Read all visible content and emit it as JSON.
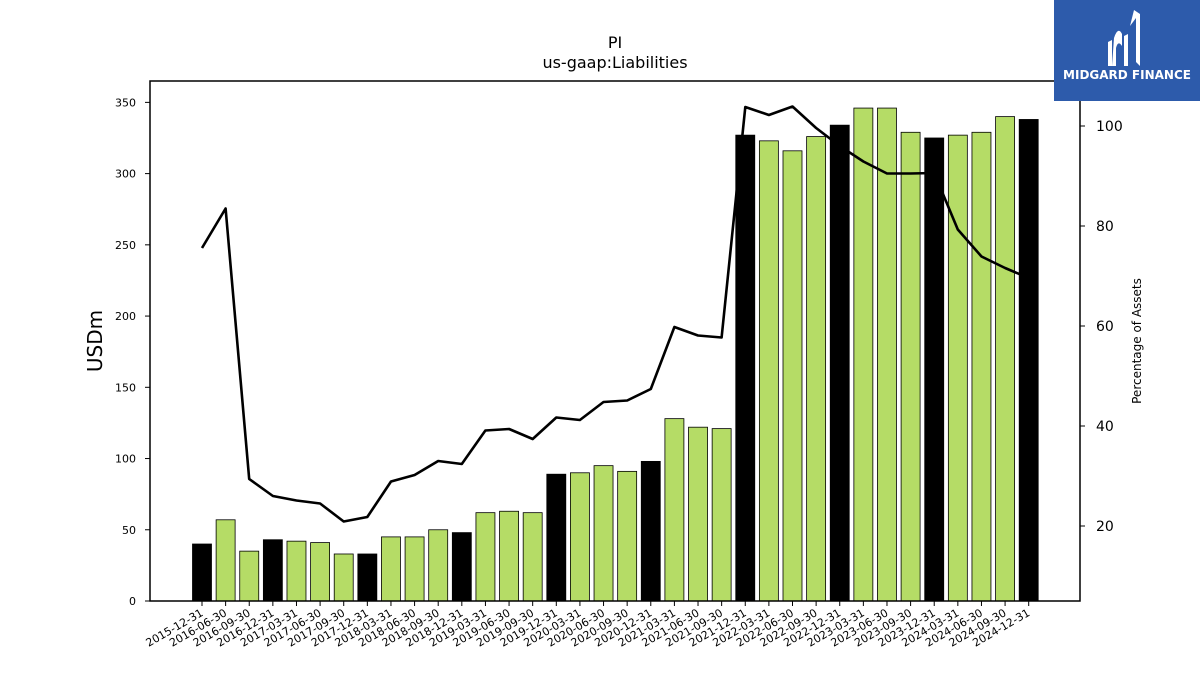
{
  "logo": {
    "text": "MIDGARD FINANCE",
    "bg_color": "#2d5bab"
  },
  "chart_data": {
    "type": "bar",
    "title": "PI",
    "subtitle": "us-gaap:Liabilities",
    "ylabel": "USDm",
    "y2label": "Percentage of Assets",
    "ylim": [
      0,
      365
    ],
    "y2lim": [
      5,
      109
    ],
    "yticks": [
      0,
      50,
      100,
      150,
      200,
      250,
      300,
      350
    ],
    "y2ticks": [
      20,
      40,
      60,
      80,
      100
    ],
    "colors": {
      "annual_bar": "#000000",
      "quarterly_bar": "#b5dc66",
      "line": "#000000"
    },
    "categories": [
      "2015-12-31",
      "2016-06-30",
      "2016-09-30",
      "2016-12-31",
      "2017-03-31",
      "2017-06-30",
      "2017-09-30",
      "2017-12-31",
      "2018-03-31",
      "2018-06-30",
      "2018-09-30",
      "2018-12-31",
      "2019-03-31",
      "2019-06-30",
      "2019-09-30",
      "2019-12-31",
      "2020-03-31",
      "2020-06-30",
      "2020-09-30",
      "2020-12-31",
      "2021-03-31",
      "2021-06-30",
      "2021-09-30",
      "2021-12-31",
      "2022-03-31",
      "2022-06-30",
      "2022-09-30",
      "2022-12-31",
      "2023-03-31",
      "2023-06-30",
      "2023-09-30",
      "2023-12-31",
      "2024-03-31",
      "2024-06-30",
      "2024-09-30",
      "2024-12-31"
    ],
    "series": [
      {
        "values": [
          40,
          57,
          35,
          43,
          42,
          41,
          33,
          33,
          45,
          45,
          50,
          48,
          62,
          63,
          62,
          89,
          90,
          95,
          91,
          98,
          128,
          122,
          121,
          327,
          323,
          316,
          326,
          334,
          346,
          346,
          329,
          325,
          327,
          329,
          340,
          338
        ]
      },
      {
        "axis": "right",
        "type": "line",
        "values": [
          75.6,
          83.5,
          29.4,
          26.0,
          25.1,
          24.5,
          20.9,
          21.8,
          28.9,
          30.2,
          33.0,
          32.4,
          39.1,
          39.4,
          37.4,
          41.7,
          41.2,
          44.8,
          45.1,
          47.4,
          59.8,
          58.1,
          57.7,
          103.8,
          102.2,
          103.9,
          99.6,
          96.0,
          92.9,
          90.5,
          90.5,
          90.6,
          79.3,
          73.9,
          71.6,
          69.6
        ]
      }
    ],
    "bar_type": [
      "annual",
      "quarterly",
      "quarterly",
      "annual",
      "quarterly",
      "quarterly",
      "quarterly",
      "annual",
      "quarterly",
      "quarterly",
      "quarterly",
      "annual",
      "quarterly",
      "quarterly",
      "quarterly",
      "annual",
      "quarterly",
      "quarterly",
      "quarterly",
      "annual",
      "quarterly",
      "quarterly",
      "quarterly",
      "annual",
      "quarterly",
      "quarterly",
      "quarterly",
      "annual",
      "quarterly",
      "quarterly",
      "quarterly",
      "annual",
      "quarterly",
      "quarterly",
      "quarterly",
      "annual"
    ],
    "grid": false,
    "legend": "none"
  }
}
